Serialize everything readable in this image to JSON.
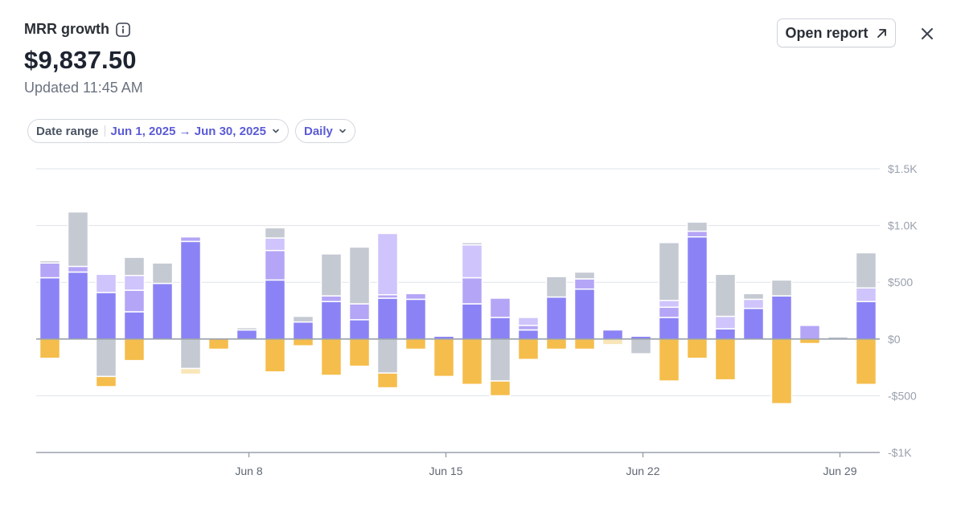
{
  "header": {
    "title": "MRR growth",
    "value": "$9,837.50",
    "updated": "Updated 11:45 AM"
  },
  "actions": {
    "open_report_label": "Open report"
  },
  "filters": {
    "date_range_label": "Date range",
    "date_range_value": "Jun 1, 2025 → Jun 30, 2025",
    "interval_value": "Daily"
  },
  "colors": {
    "new": "#8b83f5",
    "expansion": "#b5a5f6",
    "reactivation": "#cfc4fb",
    "other": "#c4c9d2",
    "churn": "#f5bd4b",
    "contraction": "#f8e6b8",
    "grid": "#dfe3ea",
    "axis": "#9aa1ad",
    "accent": "#5b5bd6"
  },
  "chart_data": {
    "type": "bar",
    "stacked": true,
    "ylim": [
      -1000,
      1500
    ],
    "yticks": [
      1500,
      1000,
      500,
      0,
      -500,
      -1000
    ],
    "ytick_labels": [
      "$1.5K",
      "$1.0K",
      "$500",
      "$0",
      "-$500",
      "-$1K"
    ],
    "x_tick_labels": [
      {
        "day": 8,
        "label": "Jun 8"
      },
      {
        "day": 15,
        "label": "Jun 15"
      },
      {
        "day": 22,
        "label": "Jun 22"
      },
      {
        "day": 29,
        "label": "Jun 29"
      }
    ],
    "series_order_positive": [
      "New",
      "Expansion",
      "Reactivation",
      "Other"
    ],
    "series_order_negative": [
      "Churn",
      "Contraction",
      "Other"
    ],
    "days": [
      {
        "day": 1,
        "pos": [
          [
            "New",
            540
          ],
          [
            "Expansion",
            130
          ],
          [
            "Other",
            20
          ]
        ],
        "neg": [
          [
            "Churn",
            170
          ]
        ]
      },
      {
        "day": 2,
        "pos": [
          [
            "New",
            590
          ],
          [
            "Expansion",
            50
          ],
          [
            "Other",
            480
          ]
        ],
        "neg": []
      },
      {
        "day": 3,
        "pos": [
          [
            "New",
            410
          ],
          [
            "Reactivation",
            160
          ]
        ],
        "neg": [
          [
            "Other",
            330
          ],
          [
            "Churn",
            90
          ]
        ]
      },
      {
        "day": 4,
        "pos": [
          [
            "New",
            240
          ],
          [
            "Expansion",
            190
          ],
          [
            "Reactivation",
            130
          ],
          [
            "Other",
            160
          ]
        ],
        "neg": [
          [
            "Churn",
            190
          ]
        ]
      },
      {
        "day": 5,
        "pos": [
          [
            "New",
            490
          ],
          [
            "Other",
            180
          ]
        ],
        "neg": []
      },
      {
        "day": 6,
        "pos": [
          [
            "New",
            860
          ],
          [
            "Expansion",
            40
          ]
        ],
        "neg": [
          [
            "Other",
            260
          ],
          [
            "Contraction",
            50
          ]
        ]
      },
      {
        "day": 7,
        "pos": [],
        "neg": [
          [
            "Churn",
            90
          ]
        ]
      },
      {
        "day": 8,
        "pos": [
          [
            "New",
            80
          ],
          [
            "Other",
            20
          ]
        ],
        "neg": []
      },
      {
        "day": 9,
        "pos": [
          [
            "New",
            520
          ],
          [
            "Expansion",
            260
          ],
          [
            "Reactivation",
            110
          ],
          [
            "Other",
            90
          ]
        ],
        "neg": [
          [
            "Churn",
            290
          ]
        ]
      },
      {
        "day": 10,
        "pos": [
          [
            "New",
            150
          ],
          [
            "Other",
            50
          ]
        ],
        "neg": [
          [
            "Churn",
            60
          ]
        ]
      },
      {
        "day": 11,
        "pos": [
          [
            "New",
            330
          ],
          [
            "Expansion",
            50
          ],
          [
            "Other",
            370
          ]
        ],
        "neg": [
          [
            "Churn",
            320
          ]
        ]
      },
      {
        "day": 12,
        "pos": [
          [
            "New",
            170
          ],
          [
            "Expansion",
            140
          ],
          [
            "Other",
            500
          ]
        ],
        "neg": [
          [
            "Churn",
            240
          ]
        ]
      },
      {
        "day": 13,
        "pos": [
          [
            "New",
            360
          ],
          [
            "Expansion",
            30
          ],
          [
            "Reactivation",
            540
          ]
        ],
        "neg": [
          [
            "Other",
            300
          ],
          [
            "Churn",
            130
          ]
        ]
      },
      {
        "day": 14,
        "pos": [
          [
            "New",
            350
          ],
          [
            "Expansion",
            50
          ]
        ],
        "neg": [
          [
            "Churn",
            90
          ]
        ]
      },
      {
        "day": 15,
        "pos": [
          [
            "New",
            25
          ]
        ],
        "neg": [
          [
            "Churn",
            330
          ]
        ]
      },
      {
        "day": 16,
        "pos": [
          [
            "New",
            310
          ],
          [
            "Expansion",
            230
          ],
          [
            "Reactivation",
            290
          ],
          [
            "Other",
            20
          ]
        ],
        "neg": [
          [
            "Churn",
            400
          ]
        ]
      },
      {
        "day": 17,
        "pos": [
          [
            "New",
            190
          ],
          [
            "Expansion",
            170
          ]
        ],
        "neg": [
          [
            "Other",
            370
          ],
          [
            "Churn",
            130
          ]
        ]
      },
      {
        "day": 18,
        "pos": [
          [
            "New",
            80
          ],
          [
            "Expansion",
            40
          ],
          [
            "Reactivation",
            70
          ]
        ],
        "neg": [
          [
            "Churn",
            180
          ]
        ]
      },
      {
        "day": 19,
        "pos": [
          [
            "New",
            370
          ],
          [
            "Other",
            180
          ]
        ],
        "neg": [
          [
            "Churn",
            90
          ]
        ]
      },
      {
        "day": 20,
        "pos": [
          [
            "New",
            440
          ],
          [
            "Expansion",
            90
          ],
          [
            "Other",
            60
          ]
        ],
        "neg": [
          [
            "Churn",
            90
          ]
        ]
      },
      {
        "day": 21,
        "pos": [
          [
            "New",
            80
          ]
        ],
        "neg": [
          [
            "Contraction",
            50
          ]
        ]
      },
      {
        "day": 22,
        "pos": [
          [
            "New",
            25
          ]
        ],
        "neg": [
          [
            "Other",
            130
          ]
        ]
      },
      {
        "day": 23,
        "pos": [
          [
            "New",
            190
          ],
          [
            "Expansion",
            90
          ],
          [
            "Reactivation",
            60
          ],
          [
            "Other",
            510
          ]
        ],
        "neg": [
          [
            "Churn",
            370
          ]
        ]
      },
      {
        "day": 24,
        "pos": [
          [
            "New",
            900
          ],
          [
            "Expansion",
            50
          ],
          [
            "Other",
            80
          ]
        ],
        "neg": [
          [
            "Churn",
            170
          ]
        ]
      },
      {
        "day": 25,
        "pos": [
          [
            "New",
            90
          ],
          [
            "Reactivation",
            110
          ],
          [
            "Other",
            370
          ]
        ],
        "neg": [
          [
            "Churn",
            360
          ]
        ]
      },
      {
        "day": 26,
        "pos": [
          [
            "New",
            270
          ],
          [
            "Reactivation",
            80
          ],
          [
            "Other",
            50
          ]
        ],
        "neg": []
      },
      {
        "day": 27,
        "pos": [
          [
            "New",
            380
          ],
          [
            "Other",
            140
          ]
        ],
        "neg": [
          [
            "Churn",
            570
          ]
        ]
      },
      {
        "day": 28,
        "pos": [
          [
            "Expansion",
            120
          ]
        ],
        "neg": [
          [
            "Churn",
            40
          ]
        ]
      },
      {
        "day": 29,
        "pos": [
          [
            "Other",
            20
          ]
        ],
        "neg": []
      },
      {
        "day": 30,
        "pos": [
          [
            "New",
            330
          ],
          [
            "Reactivation",
            120
          ],
          [
            "Other",
            310
          ]
        ],
        "neg": [
          [
            "Churn",
            400
          ]
        ]
      }
    ]
  }
}
